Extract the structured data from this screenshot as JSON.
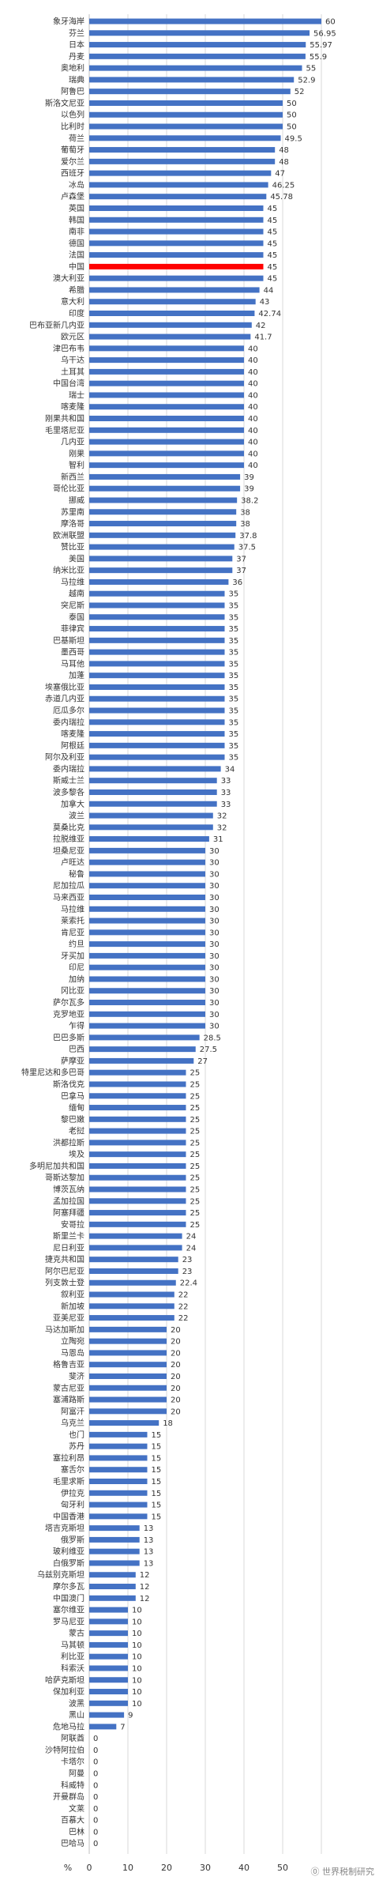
{
  "chart_data": {
    "type": "bar",
    "orientation": "horizontal",
    "categories": [
      "象牙海岸",
      "芬兰",
      "日本",
      "丹麦",
      "奥地利",
      "瑞典",
      "阿鲁巴",
      "斯洛文尼亚",
      "以色列",
      "比利时",
      "荷兰",
      "葡萄牙",
      "爱尔兰",
      "西班牙",
      "冰岛",
      "卢森堡",
      "英国",
      "韩国",
      "南非",
      "德国",
      "法国",
      "中国",
      "澳大利亚",
      "希腊",
      "意大利",
      "印度",
      "巴布亚新几内亚",
      "欧元区",
      "津巴布韦",
      "乌干达",
      "土耳其",
      "中国台湾",
      "瑞士",
      "喀麦隆",
      "刚果共和国",
      "毛里塔尼亚",
      "几内亚",
      "刚果",
      "智利",
      "新西兰",
      "哥伦比亚",
      "挪威",
      "苏里南",
      "摩洛哥",
      "欧洲联盟",
      "赞比亚",
      "美国",
      "纳米比亚",
      "马拉维",
      "越南",
      "突尼斯",
      "泰国",
      "菲律宾",
      "巴基斯坦",
      "墨西哥",
      "马耳他",
      "加蓬",
      "埃塞俄比亚",
      "赤道几内亚",
      "厄瓜多尔",
      "委内瑞拉",
      "喀麦隆",
      "阿根廷",
      "阿尔及利亚",
      "委内瑞拉",
      "斯威士兰",
      "波多黎各",
      "加拿大",
      "波兰",
      "莫桑比克",
      "拉脱维亚",
      "坦桑尼亚",
      "卢旺达",
      "秘鲁",
      "尼加拉瓜",
      "马来西亚",
      "马拉维",
      "莱索托",
      "肯尼亚",
      "约旦",
      "牙买加",
      "印尼",
      "加纳",
      "冈比亚",
      "萨尔瓦多",
      "克罗地亚",
      "乍得",
      "巴巴多斯",
      "巴西",
      "萨摩亚",
      "特里尼达和多巴哥",
      "斯洛伐克",
      "巴拿马",
      "缅甸",
      "黎巴嫩",
      "老挝",
      "洪都拉斯",
      "埃及",
      "多明尼加共和国",
      "哥斯达黎加",
      "博茨瓦纳",
      "孟加拉国",
      "阿塞拜疆",
      "安哥拉",
      "斯里兰卡",
      "尼日利亚",
      "捷克共和国",
      "阿尔巴尼亚",
      "列支敦士登",
      "叙利亚",
      "新加坡",
      "亚美尼亚",
      "马达加斯加",
      "立陶宛",
      "马恩岛",
      "格鲁吉亚",
      "斐济",
      "蒙古尼亚",
      "塞浦路斯",
      "阿富汗",
      "乌克兰",
      "也门",
      "苏丹",
      "塞拉利昂",
      "塞舌尔",
      "毛里求斯",
      "伊拉克",
      "匈牙利",
      "中国香港",
      "塔吉克斯坦",
      "俄罗斯",
      "玻利维亚",
      "白俄罗斯",
      "乌兹别克斯坦",
      "摩尔多瓦",
      "中国澳门",
      "塞尔维亚",
      "罗马尼亚",
      "蒙古",
      "马其顿",
      "利比亚",
      "科索沃",
      "哈萨克斯坦",
      "保加利亚",
      "波黑",
      "黑山",
      "危地马拉",
      "阿联酋",
      "沙特阿拉伯",
      "卡塔尔",
      "阿曼",
      "科威特",
      "开曼群岛",
      "文莱",
      "百慕大",
      "巴林",
      "巴哈马"
    ],
    "values": [
      60,
      56.95,
      55.97,
      55.9,
      55,
      52.9,
      52,
      50,
      50,
      50,
      49.5,
      48,
      48,
      47,
      46.25,
      45.78,
      45,
      45,
      45,
      45,
      45,
      45,
      45,
      44,
      43,
      42.74,
      42,
      41.7,
      40,
      40,
      40,
      40,
      40,
      40,
      40,
      40,
      40,
      40,
      40,
      39,
      39,
      38.2,
      38,
      38,
      37.8,
      37.5,
      37,
      37,
      36,
      35,
      35,
      35,
      35,
      35,
      35,
      35,
      35,
      35,
      35,
      35,
      35,
      35,
      35,
      35,
      34,
      33,
      33,
      33,
      32,
      32,
      31,
      30,
      30,
      30,
      30,
      30,
      30,
      30,
      30,
      30,
      30,
      30,
      30,
      30,
      30,
      30,
      30,
      28.5,
      27.5,
      27,
      25,
      25,
      25,
      25,
      25,
      25,
      25,
      25,
      25,
      25,
      25,
      25,
      25,
      25,
      24,
      24,
      23,
      23,
      22.4,
      22,
      22,
      22,
      20,
      20,
      20,
      20,
      20,
      20,
      20,
      20,
      18,
      15,
      15,
      15,
      15,
      15,
      15,
      15,
      15,
      13,
      13,
      13,
      13,
      12,
      12,
      12,
      10,
      10,
      10,
      10,
      10,
      10,
      10,
      10,
      10,
      9,
      7,
      0,
      0,
      0,
      0,
      0,
      0,
      0,
      0,
      0,
      0
    ],
    "value_labels": [
      "60",
      "56.95",
      "55.97",
      "55.9",
      "55",
      "52.9",
      "52",
      "50",
      "50",
      "50",
      "49.5",
      "48",
      "48",
      "47",
      "46.25",
      "45.78",
      "45",
      "45",
      "45",
      "45",
      "45",
      "45",
      "45",
      "44",
      "43",
      "42.74",
      "42",
      "41.7",
      "40",
      "40",
      "40",
      "40",
      "40",
      "40",
      "40",
      "40",
      "40",
      "40",
      "40",
      "39",
      "39",
      "38.2",
      "38",
      "38",
      "37.8",
      "37.5",
      "37",
      "37",
      "36",
      "35",
      "35",
      "35",
      "35",
      "35",
      "35",
      "35",
      "35",
      "35",
      "35",
      "35",
      "35",
      "35",
      "35",
      "35",
      "34",
      "33",
      "33",
      "33",
      "32",
      "32",
      "31",
      "30",
      "30",
      "30",
      "30",
      "30",
      "30",
      "30",
      "30",
      "30",
      "30",
      "30",
      "30",
      "30",
      "30",
      "30",
      "30",
      "28.5",
      "27.5",
      "27",
      "25",
      "25",
      "25",
      "25",
      "25",
      "25",
      "25",
      "25",
      "25",
      "25",
      "25",
      "25",
      "25",
      "25",
      "24",
      "24",
      "23",
      "23",
      "22.4",
      "22",
      "22",
      "22",
      "20",
      "20",
      "20",
      "20",
      "20",
      "20",
      "20",
      "20",
      "18",
      "15",
      "15",
      "15",
      "15",
      "15",
      "15",
      "15",
      "15",
      "13",
      "13",
      "13",
      "13",
      "12",
      "12",
      "12",
      "10",
      "10",
      "10",
      "10",
      "10",
      "10",
      "10",
      "10",
      "10",
      "9",
      "7",
      "0",
      "0",
      "0",
      "0",
      "0",
      "0",
      "0",
      "0",
      "0",
      "0"
    ],
    "highlight_index": 21,
    "xlim": [
      0,
      60
    ],
    "xticks": [
      "0",
      "10",
      "20",
      "30",
      "40",
      "50"
    ],
    "x_unit": "%",
    "bar_color": "#4472C4",
    "highlight_color": "#FF0000",
    "highlight_text_color": "#FF0000",
    "grid": true,
    "legend": "none"
  },
  "watermark": "⓪ 世界税制研究"
}
